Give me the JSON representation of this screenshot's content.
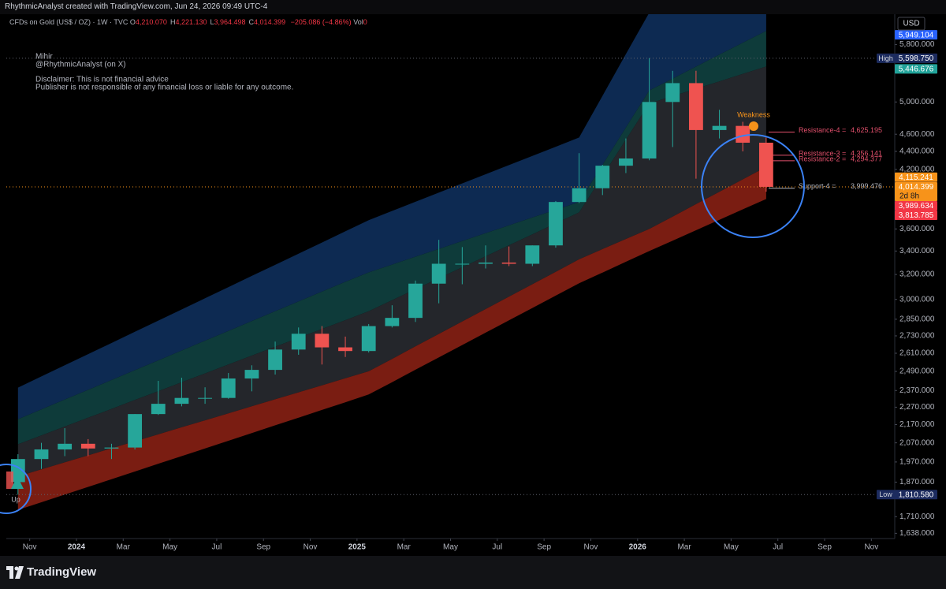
{
  "header": {
    "credit": "RhythmicAnalyst created with TradingView.com, Jun 24, 2026 09:49 UTC-4",
    "symbol": "CFDs on Gold (US$ / OZ) · 1W · TVC",
    "ohlc": [
      {
        "key": "O",
        "label": "4,210.070"
      },
      {
        "key": "H",
        "label": "4,221.130"
      },
      {
        "key": "L",
        "label": "3,964.498"
      },
      {
        "key": "C",
        "label": "4,014.399"
      }
    ],
    "change": "−205.086 (−4.86%)",
    "volume_label": "Vol",
    "volume": 0
  },
  "notes": [
    "Mihir",
    "@RhythmicAnalyst (on X)",
    "Disclaimer: This is not financial advice",
    "Publisher is not responsible of any financial loss or liable for any outcome."
  ],
  "weakness": "Weakness",
  "left_marker": "Up",
  "footer": {
    "brand": "TradingView"
  },
  "chart_data": {
    "type": "candlestick",
    "log_scale": true,
    "currency": "USD",
    "up_color": "#26a69a",
    "down_color": "#ef5350",
    "xlim": [
      "2023-10",
      "2026-12"
    ],
    "xticks": [
      {
        "value": "2023-11",
        "label": "Nov"
      },
      {
        "value": "2024-01",
        "label": "2024"
      },
      {
        "value": "2024-03",
        "label": "Mar"
      },
      {
        "value": "2024-05",
        "label": "May"
      },
      {
        "value": "2024-07",
        "label": "Jul"
      },
      {
        "value": "2024-09",
        "label": "Sep"
      },
      {
        "value": "2024-11",
        "label": "Nov"
      },
      {
        "value": "2025-01",
        "label": "2025"
      },
      {
        "value": "2025-03",
        "label": "Mar"
      },
      {
        "value": "2025-05",
        "label": "May"
      },
      {
        "value": "2025-07",
        "label": "Jul"
      },
      {
        "value": "2025-09",
        "label": "Sep"
      },
      {
        "value": "2025-11",
        "label": "Nov"
      },
      {
        "value": "2026-01",
        "label": "2026"
      },
      {
        "value": "2026-03",
        "label": "Mar"
      },
      {
        "value": "2026-05",
        "label": "May"
      },
      {
        "value": "2026-07",
        "label": "Jul"
      },
      {
        "value": "2026-09",
        "label": "Sep"
      },
      {
        "value": "2026-11",
        "label": "Nov"
      }
    ],
    "ylim": [
      1616,
      6275
    ],
    "yticks": [
      {
        "value": 5800,
        "label": "5,800.000"
      },
      {
        "value": 5000,
        "label": "5,000.000"
      },
      {
        "value": 4600,
        "label": "4,600.000"
      },
      {
        "value": 4400,
        "label": "4,400.000"
      },
      {
        "value": 4200,
        "label": "4,200.000"
      },
      {
        "value": 3600,
        "label": "3,600.000"
      },
      {
        "value": 3400,
        "label": "3,400.000"
      },
      {
        "value": 3200,
        "label": "3,200.000"
      },
      {
        "value": 3000,
        "label": "3,000.000"
      },
      {
        "value": 2850,
        "label": "2,850.000"
      },
      {
        "value": 2730,
        "label": "2,730.000"
      },
      {
        "value": 2610,
        "label": "2,610.000"
      },
      {
        "value": 2490,
        "label": "2,490.000"
      },
      {
        "value": 2370,
        "label": "2,370.000"
      },
      {
        "value": 2270,
        "label": "2,270.000"
      },
      {
        "value": 2170,
        "label": "2,170.000"
      },
      {
        "value": 2070,
        "label": "2,070.000"
      },
      {
        "value": 1970,
        "label": "1,970.000"
      },
      {
        "value": 1870,
        "label": "1,870.000"
      },
      {
        "value": 1710,
        "label": "1,710.000"
      },
      {
        "value": 1638,
        "label": "1,638.000"
      }
    ],
    "x": [
      "2023-10",
      "2023-11",
      "2023-12",
      "2024-01",
      "2024-02",
      "2024-03",
      "2024-04",
      "2024-05",
      "2024-06",
      "2024-07",
      "2024-08",
      "2024-09",
      "2024-10",
      "2024-11",
      "2024-12",
      "2025-01",
      "2025-02",
      "2025-03",
      "2025-04",
      "2025-05",
      "2025-06",
      "2025-07",
      "2025-08",
      "2025-09",
      "2025-10",
      "2025-11",
      "2025-12",
      "2026-01",
      "2026-02",
      "2026-03",
      "2026-04",
      "2026-05",
      "2026-06"
    ],
    "open": [
      1870,
      1985,
      2035,
      2065,
      2040,
      2045,
      2230,
      2290,
      2325,
      2325,
      2445,
      2500,
      2635,
      2745,
      2650,
      2625,
      2800,
      2860,
      3125,
      3290,
      3290,
      3300,
      3290,
      3450,
      3860,
      4000,
      4240,
      4320,
      5000,
      5250,
      4650,
      4700,
      4500
    ],
    "high": [
      2010,
      2070,
      2150,
      2090,
      2065,
      2230,
      2430,
      2450,
      2390,
      2480,
      2530,
      2690,
      2790,
      2800,
      2725,
      2815,
      2955,
      3150,
      3500,
      3435,
      3450,
      3440,
      3450,
      3870,
      4380,
      4250,
      4550,
      5600,
      5420,
      5420,
      4900,
      4750,
      4560
    ],
    "low": [
      1810,
      1935,
      2000,
      2000,
      1985,
      2035,
      2225,
      2275,
      2290,
      2320,
      2365,
      2470,
      2600,
      2535,
      2585,
      2615,
      2790,
      2830,
      2970,
      3120,
      3250,
      3270,
      3270,
      3430,
      3850,
      3930,
      4160,
      4300,
      4450,
      4100,
      4550,
      4400,
      3964.498
    ],
    "close": [
      1985,
      2035,
      2065,
      2040,
      2045,
      2230,
      2290,
      2325,
      2325,
      2445,
      2500,
      2635,
      2745,
      2650,
      2625,
      2800,
      2860,
      3125,
      3290,
      3290,
      3300,
      3290,
      3450,
      3860,
      4000,
      4240,
      4320,
      5000,
      5250,
      4650,
      4700,
      4500,
      4014.399
    ],
    "bands": [
      {
        "color": "#0d2a52",
        "values": [
          2388,
          2458,
          2530,
          2604,
          2680,
          2759,
          2840,
          2923,
          3009,
          3097,
          3188,
          3281,
          3377,
          3476,
          3578,
          3683,
          3772,
          3862,
          3955,
          4050,
          4147,
          4247,
          4349,
          4453,
          4561,
          5081,
          5660,
          6300,
          6360,
          6420,
          6480,
          6540,
          6600
        ]
      },
      {
        "color": "#0e3b3a",
        "values": [
          2200,
          2257,
          2315,
          2374,
          2435,
          2498,
          2562,
          2628,
          2696,
          2765,
          2836,
          2909,
          2984,
          3061,
          3139,
          3217,
          3283,
          3350,
          3419,
          3489,
          3560,
          3633,
          3708,
          3783,
          3860,
          4250,
          4679,
          5150,
          5312,
          5479,
          5651,
          5828,
          6010
        ]
      },
      {
        "color": "#24262b",
        "values": [
          2062,
          2110,
          2159,
          2209,
          2260,
          2313,
          2366,
          2421,
          2477,
          2535,
          2594,
          2654,
          2716,
          2779,
          2843,
          2910,
          2994,
          3080,
          3169,
          3260,
          3354,
          3451,
          3550,
          3652,
          3757,
          4127,
          4534,
          4980,
          5076,
          5174,
          5274,
          5376,
          5480
        ]
      },
      {
        "color": "#7a1d12",
        "values": [
          1898,
          1933,
          1968,
          2004,
          2041,
          2078,
          2116,
          2155,
          2194,
          2234,
          2275,
          2317,
          2359,
          2402,
          2446,
          2491,
          2572,
          2657,
          2744,
          2833,
          2926,
          3021,
          3120,
          3222,
          3328,
          3417,
          3508,
          3600,
          3717,
          3839,
          3964,
          4093,
          4226
        ]
      },
      {
        "values": [
          1740,
          1775,
          1811,
          1847,
          1884,
          1922,
          1961,
          2000,
          2040,
          2081,
          2123,
          2166,
          2209,
          2254,
          2299,
          2346,
          2422,
          2501,
          2582,
          2666,
          2753,
          2842,
          2934,
          3030,
          3128,
          3216,
          3307,
          3400,
          3493,
          3588,
          3686,
          3787,
          3890
        ]
      }
    ],
    "levels": [
      {
        "name": "Resistance-4 =",
        "value": 4625.195,
        "label": "4,625.195",
        "color": "#e2506c"
      },
      {
        "name": "Resistance-3 =",
        "value": 4356.141,
        "label": "4,356.141",
        "color": "#e2506c"
      },
      {
        "name": "Resistance-2 =",
        "value": 4294.377,
        "label": "4,294.377",
        "color": "#e2506c"
      },
      {
        "name": "Support-4 =",
        "value": 3999.476,
        "label": "3,999.476",
        "color": "#b2b5be"
      }
    ],
    "price_badges": [
      {
        "value": 5949.104,
        "label": "5,949.104",
        "color": "#2962ff"
      },
      {
        "tag": "High",
        "value": 5598.75,
        "label": "5,598.750",
        "color": "#1c2b5e"
      },
      {
        "value": 5446.676,
        "label": "5,446.676",
        "color": "#22a39a"
      },
      {
        "value": 4115.241,
        "label": "4,115.241",
        "color": "#f7931a"
      },
      {
        "value": 4014.399,
        "label": "4,014.399",
        "sub": "2d 8h",
        "color": "#f7931a"
      },
      {
        "value": 3989.634,
        "label": "3,989.634",
        "color": "#f23645"
      },
      {
        "value": 3813.785,
        "label": "3,813.785",
        "color": "#f23645"
      },
      {
        "tag": "Low",
        "value": 1810.58,
        "label": "1,810.580",
        "color": "#1c2b5e"
      }
    ]
  }
}
